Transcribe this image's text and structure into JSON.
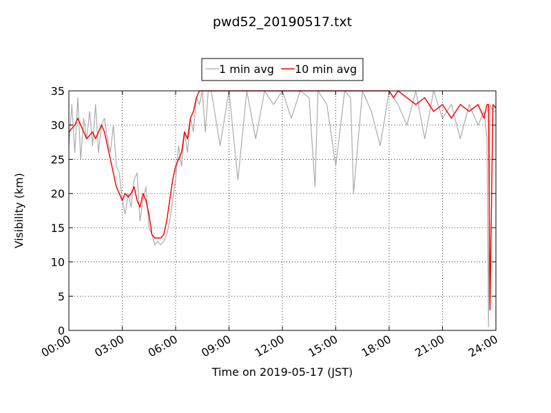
{
  "chart_data": {
    "type": "line",
    "title": "pwd52_20190517.txt",
    "xlabel": "Time on 2019-05-17 (JST)",
    "ylabel": "Visibility (km)",
    "xlim": [
      "00:00",
      "24:00"
    ],
    "ylim": [
      0,
      35
    ],
    "x_ticks": [
      "00:00",
      "03:00",
      "06:00",
      "09:00",
      "12:00",
      "15:00",
      "18:00",
      "21:00",
      "24:00"
    ],
    "y_ticks": [
      "0",
      "5",
      "10",
      "15",
      "20",
      "25",
      "30",
      "35"
    ],
    "grid": true,
    "legend_position": "top-center",
    "series": [
      {
        "name": "1 min avg",
        "color": "#aaaaaa",
        "x": [
          "00:00",
          "00:10",
          "00:20",
          "00:30",
          "00:40",
          "00:50",
          "01:00",
          "01:10",
          "01:20",
          "01:30",
          "01:40",
          "01:50",
          "02:00",
          "02:10",
          "02:20",
          "02:30",
          "02:40",
          "02:50",
          "03:00",
          "03:10",
          "03:20",
          "03:30",
          "03:40",
          "03:50",
          "04:00",
          "04:10",
          "04:20",
          "04:30",
          "04:40",
          "04:50",
          "05:00",
          "05:10",
          "05:20",
          "05:30",
          "05:40",
          "05:50",
          "06:00",
          "06:10",
          "06:20",
          "06:30",
          "06:40",
          "06:50",
          "07:00",
          "07:10",
          "07:20",
          "07:30",
          "07:40",
          "07:50",
          "08:00",
          "08:30",
          "09:00",
          "09:30",
          "10:00",
          "10:30",
          "11:00",
          "11:30",
          "12:00",
          "12:30",
          "13:00",
          "13:30",
          "13:50",
          "14:00",
          "14:30",
          "15:00",
          "15:30",
          "15:50",
          "16:00",
          "16:30",
          "17:00",
          "17:30",
          "18:00",
          "18:30",
          "19:00",
          "19:30",
          "20:00",
          "20:30",
          "21:00",
          "21:30",
          "22:00",
          "22:30",
          "23:00",
          "23:20",
          "23:30",
          "23:35",
          "23:40",
          "23:50",
          "24:00"
        ],
        "values": [
          27,
          33,
          26,
          34,
          25,
          31,
          28,
          32,
          27,
          33,
          26,
          30,
          31,
          28,
          26,
          30,
          24,
          23,
          19,
          17,
          20,
          18,
          22,
          23,
          16,
          19,
          21,
          15,
          14,
          12.5,
          13,
          12.5,
          13,
          14,
          16,
          19,
          22,
          27,
          24,
          29,
          26,
          31,
          29,
          34,
          33,
          35,
          29,
          35,
          35,
          27,
          35,
          22,
          35,
          28,
          35,
          33,
          35,
          31,
          35,
          34,
          21,
          35,
          33,
          24,
          35,
          34,
          20,
          35,
          32,
          27,
          35,
          33,
          30,
          35,
          28,
          35,
          31,
          33,
          28,
          33,
          30,
          32,
          28,
          0.5,
          33,
          32,
          32
        ]
      },
      {
        "name": "10 min avg",
        "color": "#ff0000",
        "x": [
          "00:00",
          "00:10",
          "00:20",
          "00:30",
          "00:40",
          "00:50",
          "01:00",
          "01:10",
          "01:20",
          "01:30",
          "01:40",
          "01:50",
          "02:00",
          "02:10",
          "02:20",
          "02:30",
          "02:40",
          "02:50",
          "03:00",
          "03:10",
          "03:20",
          "03:30",
          "03:40",
          "03:50",
          "04:00",
          "04:10",
          "04:20",
          "04:30",
          "04:40",
          "04:50",
          "05:00",
          "05:10",
          "05:20",
          "05:30",
          "05:40",
          "05:50",
          "06:00",
          "06:10",
          "06:20",
          "06:30",
          "06:40",
          "06:50",
          "07:00",
          "07:10",
          "07:20",
          "07:30",
          "07:40",
          "07:50",
          "08:00",
          "08:30",
          "09:00",
          "09:30",
          "10:00",
          "10:30",
          "11:00",
          "11:30",
          "12:00",
          "12:30",
          "13:00",
          "13:30",
          "14:00",
          "14:30",
          "15:00",
          "15:30",
          "16:00",
          "16:30",
          "17:00",
          "17:30",
          "18:00",
          "18:15",
          "18:30",
          "19:00",
          "19:30",
          "20:00",
          "20:30",
          "21:00",
          "21:30",
          "22:00",
          "22:30",
          "23:00",
          "23:20",
          "23:30",
          "23:35",
          "23:40",
          "23:50",
          "24:00"
        ],
        "values": [
          29,
          29.5,
          30,
          31,
          30,
          29,
          28,
          28.5,
          29,
          28,
          29,
          30,
          29,
          27,
          25,
          23,
          21,
          20,
          19,
          20,
          19.5,
          20,
          21,
          19,
          18,
          20,
          19,
          17,
          14,
          13.5,
          13.5,
          13.5,
          14,
          16,
          19,
          22,
          24,
          25,
          26,
          29,
          28,
          31,
          32,
          34,
          35,
          35,
          35,
          35,
          35,
          35,
          35,
          35,
          35,
          35,
          35,
          35,
          35,
          35,
          35,
          35,
          35,
          35,
          35,
          35,
          35,
          35,
          35,
          35,
          35,
          34,
          35,
          34,
          33,
          34,
          32,
          33,
          31,
          33,
          32,
          33,
          31,
          33,
          33,
          3,
          33,
          32.5
        ]
      }
    ]
  }
}
